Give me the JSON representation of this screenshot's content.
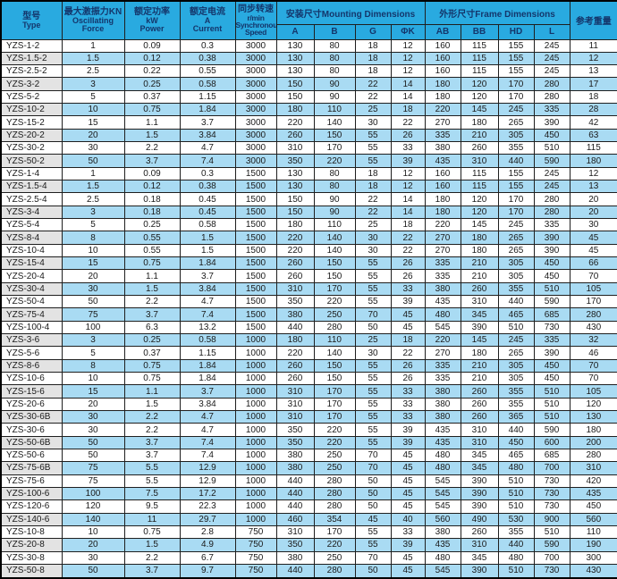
{
  "colors": {
    "header_bg": "#29aae0",
    "header_text": "#14366b",
    "row_alt_blue": "#a9dbf3",
    "type_alt_gray": "#e3e3e3",
    "grid": "#1f1f1f"
  },
  "header": {
    "type_zh": "型号",
    "type_en": "Type",
    "force_zh": "最大激振力KN",
    "force_en1": "Oscillating",
    "force_en2": "Force",
    "power_zh": "额定功率",
    "power_en1": "kW",
    "power_en2": "Power",
    "current_zh": "额定电流",
    "current_en1": "A",
    "current_en2": "Current",
    "speed_zh": "同步转速",
    "speed_en1": "r/min",
    "speed_en2": "Synchronous",
    "speed_en3": "Speed",
    "mounting": "安装尺寸Mounting Dimensions",
    "frame": "外形尺寸Frame Dimensions",
    "weight": "参考重量",
    "sub_a": "A",
    "sub_b": "B",
    "sub_g": "G",
    "sub_phik": "ΦK",
    "sub_ab": "AB",
    "sub_bb": "BB",
    "sub_hd": "HD",
    "sub_l": "L"
  },
  "rows": [
    [
      "YZS-1-2",
      "1",
      "0.09",
      "0.3",
      "3000",
      "130",
      "80",
      "18",
      "12",
      "160",
      "115",
      "155",
      "245",
      "11"
    ],
    [
      "YZS-1.5-2",
      "1.5",
      "0.12",
      "0.38",
      "3000",
      "130",
      "80",
      "18",
      "12",
      "160",
      "115",
      "155",
      "245",
      "12"
    ],
    [
      "YZS-2.5-2",
      "2.5",
      "0.22",
      "0.55",
      "3000",
      "130",
      "80",
      "18",
      "12",
      "160",
      "115",
      "155",
      "245",
      "13"
    ],
    [
      "YZS-3-2",
      "3",
      "0.25",
      "0.58",
      "3000",
      "150",
      "90",
      "22",
      "14",
      "180",
      "120",
      "170",
      "280",
      "17"
    ],
    [
      "YZS-5-2",
      "5",
      "0.37",
      "1.15",
      "3000",
      "150",
      "90",
      "22",
      "14",
      "180",
      "120",
      "170",
      "280",
      "18"
    ],
    [
      "YZS-10-2",
      "10",
      "0.75",
      "1.84",
      "3000",
      "180",
      "110",
      "25",
      "18",
      "220",
      "145",
      "245",
      "335",
      "28"
    ],
    [
      "YZS-15-2",
      "15",
      "1.1",
      "3.7",
      "3000",
      "220",
      "140",
      "30",
      "22",
      "270",
      "180",
      "265",
      "390",
      "42"
    ],
    [
      "YZS-20-2",
      "20",
      "1.5",
      "3.84",
      "3000",
      "260",
      "150",
      "55",
      "26",
      "335",
      "210",
      "305",
      "450",
      "63"
    ],
    [
      "YZS-30-2",
      "30",
      "2.2",
      "4.7",
      "3000",
      "310",
      "170",
      "55",
      "33",
      "380",
      "260",
      "355",
      "510",
      "115"
    ],
    [
      "YZS-50-2",
      "50",
      "3.7",
      "7.4",
      "3000",
      "350",
      "220",
      "55",
      "39",
      "435",
      "310",
      "440",
      "590",
      "180"
    ],
    [
      "YZS-1-4",
      "1",
      "0.09",
      "0.3",
      "1500",
      "130",
      "80",
      "18",
      "12",
      "160",
      "115",
      "155",
      "245",
      "12"
    ],
    [
      "YZS-1.5-4",
      "1.5",
      "0.12",
      "0.38",
      "1500",
      "130",
      "80",
      "18",
      "12",
      "160",
      "115",
      "155",
      "245",
      "13"
    ],
    [
      "YZS-2.5-4",
      "2.5",
      "0.18",
      "0.45",
      "1500",
      "150",
      "90",
      "22",
      "14",
      "180",
      "120",
      "170",
      "280",
      "20"
    ],
    [
      "YZS-3-4",
      "3",
      "0.18",
      "0.45",
      "1500",
      "150",
      "90",
      "22",
      "14",
      "180",
      "120",
      "170",
      "280",
      "20"
    ],
    [
      "YZS-5-4",
      "5",
      "0.25",
      "0.58",
      "1500",
      "180",
      "110",
      "25",
      "18",
      "220",
      "145",
      "245",
      "335",
      "30"
    ],
    [
      "YZS-8-4",
      "8",
      "0.55",
      "1.5",
      "1500",
      "220",
      "140",
      "30",
      "22",
      "270",
      "180",
      "265",
      "390",
      "45"
    ],
    [
      "YZS-10-4",
      "10",
      "0.55",
      "1.5",
      "1500",
      "220",
      "140",
      "30",
      "22",
      "270",
      "180",
      "265",
      "390",
      "45"
    ],
    [
      "YZS-15-4",
      "15",
      "0.75",
      "1.84",
      "1500",
      "260",
      "150",
      "55",
      "26",
      "335",
      "210",
      "305",
      "450",
      "66"
    ],
    [
      "YZS-20-4",
      "20",
      "1.1",
      "3.7",
      "1500",
      "260",
      "150",
      "55",
      "26",
      "335",
      "210",
      "305",
      "450",
      "70"
    ],
    [
      "YZS-30-4",
      "30",
      "1.5",
      "3.84",
      "1500",
      "310",
      "170",
      "55",
      "33",
      "380",
      "260",
      "355",
      "510",
      "105"
    ],
    [
      "YZS-50-4",
      "50",
      "2.2",
      "4.7",
      "1500",
      "350",
      "220",
      "55",
      "39",
      "435",
      "310",
      "440",
      "590",
      "170"
    ],
    [
      "YZS-75-4",
      "75",
      "3.7",
      "7.4",
      "1500",
      "380",
      "250",
      "70",
      "45",
      "480",
      "345",
      "465",
      "685",
      "280"
    ],
    [
      "YZS-100-4",
      "100",
      "6.3",
      "13.2",
      "1500",
      "440",
      "280",
      "50",
      "45",
      "545",
      "390",
      "510",
      "730",
      "430"
    ],
    [
      "YZS-3-6",
      "3",
      "0.25",
      "0.58",
      "1000",
      "180",
      "110",
      "25",
      "18",
      "220",
      "145",
      "245",
      "335",
      "32"
    ],
    [
      "YZS-5-6",
      "5",
      "0.37",
      "1.15",
      "1000",
      "220",
      "140",
      "30",
      "22",
      "270",
      "180",
      "265",
      "390",
      "46"
    ],
    [
      "YZS-8-6",
      "8",
      "0.75",
      "1.84",
      "1000",
      "260",
      "150",
      "55",
      "26",
      "335",
      "210",
      "305",
      "450",
      "70"
    ],
    [
      "YZS-10-6",
      "10",
      "0.75",
      "1.84",
      "1000",
      "260",
      "150",
      "55",
      "26",
      "335",
      "210",
      "305",
      "450",
      "70"
    ],
    [
      "YZS-15-6",
      "15",
      "1.1",
      "3.7",
      "1000",
      "310",
      "170",
      "55",
      "33",
      "380",
      "260",
      "355",
      "510",
      "105"
    ],
    [
      "YZS-20-6",
      "20",
      "1.5",
      "3.84",
      "1000",
      "310",
      "170",
      "55",
      "33",
      "380",
      "260",
      "355",
      "510",
      "120"
    ],
    [
      "YZS-30-6B",
      "30",
      "2.2",
      "4.7",
      "1000",
      "310",
      "170",
      "55",
      "33",
      "380",
      "260",
      "365",
      "510",
      "130"
    ],
    [
      "YZS-30-6",
      "30",
      "2.2",
      "4.7",
      "1000",
      "350",
      "220",
      "55",
      "39",
      "435",
      "310",
      "440",
      "590",
      "180"
    ],
    [
      "YZS-50-6B",
      "50",
      "3.7",
      "7.4",
      "1000",
      "350",
      "220",
      "55",
      "39",
      "435",
      "310",
      "450",
      "600",
      "200"
    ],
    [
      "YZS-50-6",
      "50",
      "3.7",
      "7.4",
      "1000",
      "380",
      "250",
      "70",
      "45",
      "480",
      "345",
      "465",
      "685",
      "280"
    ],
    [
      "YZS-75-6B",
      "75",
      "5.5",
      "12.9",
      "1000",
      "380",
      "250",
      "70",
      "45",
      "480",
      "345",
      "480",
      "700",
      "310"
    ],
    [
      "YZS-75-6",
      "75",
      "5.5",
      "12.9",
      "1000",
      "440",
      "280",
      "50",
      "45",
      "545",
      "390",
      "510",
      "730",
      "420"
    ],
    [
      "YZS-100-6",
      "100",
      "7.5",
      "17.2",
      "1000",
      "440",
      "280",
      "50",
      "45",
      "545",
      "390",
      "510",
      "730",
      "435"
    ],
    [
      "YZS-120-6",
      "120",
      "9.5",
      "22.3",
      "1000",
      "440",
      "280",
      "50",
      "45",
      "545",
      "390",
      "510",
      "730",
      "450"
    ],
    [
      "YZS-140-6",
      "140",
      "11",
      "29.7",
      "1000",
      "460",
      "354",
      "45",
      "40",
      "560",
      "490",
      "530",
      "900",
      "560"
    ],
    [
      "YZS-10-8",
      "10",
      "0.75",
      "2.8",
      "750",
      "310",
      "170",
      "55",
      "33",
      "380",
      "260",
      "355",
      "510",
      "110"
    ],
    [
      "YZS-20-8",
      "20",
      "1.5",
      "4.9",
      "750",
      "350",
      "220",
      "55",
      "39",
      "435",
      "310",
      "440",
      "590",
      "190"
    ],
    [
      "YZS-30-8",
      "30",
      "2.2",
      "6.7",
      "750",
      "380",
      "250",
      "70",
      "45",
      "480",
      "345",
      "480",
      "700",
      "300"
    ],
    [
      "YZS-50-8",
      "50",
      "3.7",
      "9.7",
      "750",
      "440",
      "280",
      "50",
      "45",
      "545",
      "390",
      "510",
      "730",
      "430"
    ]
  ]
}
